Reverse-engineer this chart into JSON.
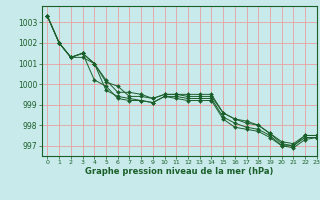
{
  "background_color": "#c8eaea",
  "grid_color": "#e8a0a0",
  "line_color": "#1a5f2a",
  "marker_color": "#1a5f2a",
  "xlabel": "Graphe pression niveau de la mer (hPa)",
  "ylim": [
    996.5,
    1003.8
  ],
  "xlim": [
    -0.5,
    23
  ],
  "yticks": [
    997,
    998,
    999,
    1000,
    1001,
    1002,
    1003
  ],
  "xticks": [
    0,
    1,
    2,
    3,
    4,
    5,
    6,
    7,
    8,
    9,
    10,
    11,
    12,
    13,
    14,
    15,
    16,
    17,
    18,
    19,
    20,
    21,
    22,
    23
  ],
  "series": [
    [
      1003.3,
      1002.0,
      1001.3,
      1001.3,
      1001.0,
      1000.2,
      999.6,
      999.6,
      999.5,
      999.3,
      999.5,
      999.5,
      999.5,
      999.5,
      999.5,
      998.6,
      998.3,
      998.2,
      998.0,
      997.6,
      997.2,
      997.1,
      997.5,
      997.5
    ],
    [
      1003.3,
      1002.0,
      1001.3,
      1001.5,
      1001.0,
      1000.1,
      999.9,
      999.4,
      999.4,
      999.3,
      999.5,
      999.5,
      999.4,
      999.4,
      999.4,
      998.6,
      998.3,
      998.1,
      998.0,
      997.6,
      997.1,
      997.0,
      997.5,
      997.5
    ],
    [
      1003.3,
      1002.0,
      1001.3,
      1001.5,
      1000.2,
      999.9,
      999.3,
      999.2,
      999.2,
      999.1,
      999.4,
      999.4,
      999.3,
      999.3,
      999.3,
      998.4,
      998.1,
      997.9,
      997.8,
      997.5,
      997.0,
      997.0,
      997.4,
      997.4
    ],
    [
      1003.3,
      1002.0,
      1001.3,
      1001.5,
      1001.0,
      999.7,
      999.4,
      999.3,
      999.2,
      999.1,
      999.4,
      999.3,
      999.2,
      999.2,
      999.2,
      998.3,
      997.9,
      997.8,
      997.7,
      997.4,
      997.0,
      996.9,
      997.3,
      997.4
    ]
  ]
}
